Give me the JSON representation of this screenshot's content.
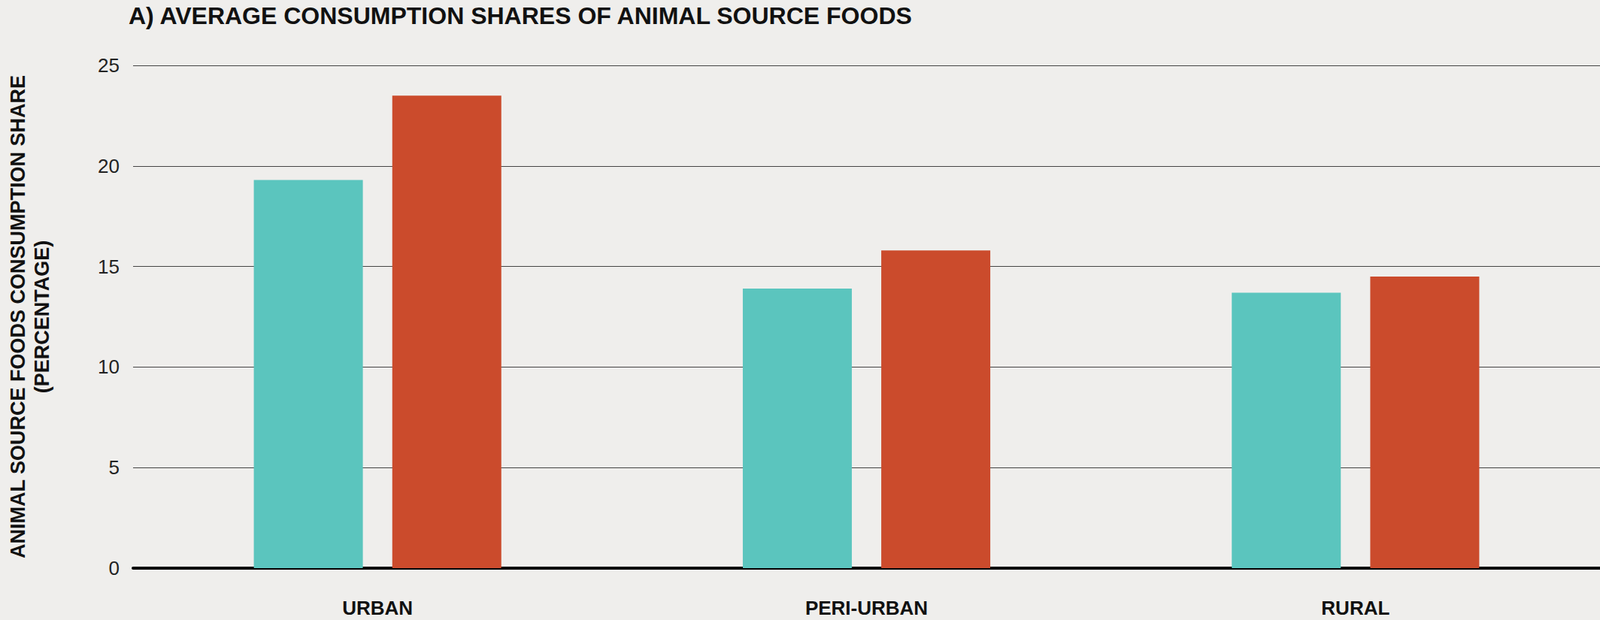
{
  "chart_data": {
    "type": "bar",
    "title": "A) AVERAGE CONSUMPTION SHARES OF ANIMAL SOURCE FOODS",
    "y_label": "ANIMAL SOURCE FOODS CONSUMPTION SHARE\n(PERCENTAGE)",
    "categories": [
      "URBAN",
      "PERI-URBAN",
      "RURAL"
    ],
    "series": [
      {
        "color": "#5bc5be",
        "values": [
          19.3,
          13.9,
          13.7
        ]
      },
      {
        "color": "#cb4b2c",
        "values": [
          23.5,
          15.8,
          14.5
        ]
      }
    ],
    "ylim": [
      0,
      25
    ],
    "yticks": [
      0,
      5,
      10,
      15,
      20,
      25
    ],
    "grid": true
  }
}
